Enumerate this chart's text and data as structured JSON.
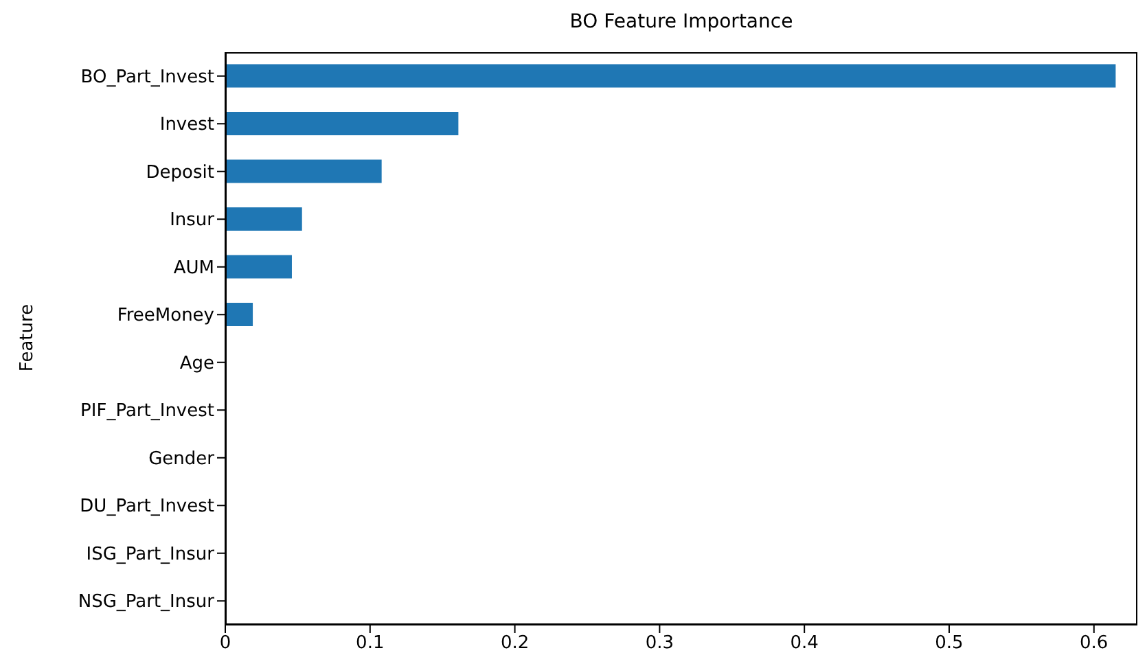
{
  "chart_data": {
    "type": "bar",
    "orientation": "horizontal",
    "title": "BO Feature Importance",
    "ylabel": "Feature",
    "categories": [
      "BO_Part_Invest",
      "Invest",
      "Deposit",
      "Insur",
      "AUM",
      "FreeMoney",
      "Age",
      "PIF_Part_Invest",
      "Gender",
      "DU_Part_Invest",
      "ISG_Part_Insur",
      "NSG_Part_Insur"
    ],
    "values": [
      0.615,
      0.161,
      0.108,
      0.053,
      0.046,
      0.019,
      0,
      0,
      0,
      0,
      0,
      0
    ],
    "color": "#1f77b4",
    "xlim": [
      0,
      0.63
    ],
    "xticks": [
      0,
      0.1,
      0.2,
      0.3,
      0.4,
      0.5,
      0.6
    ],
    "grid": false
  }
}
